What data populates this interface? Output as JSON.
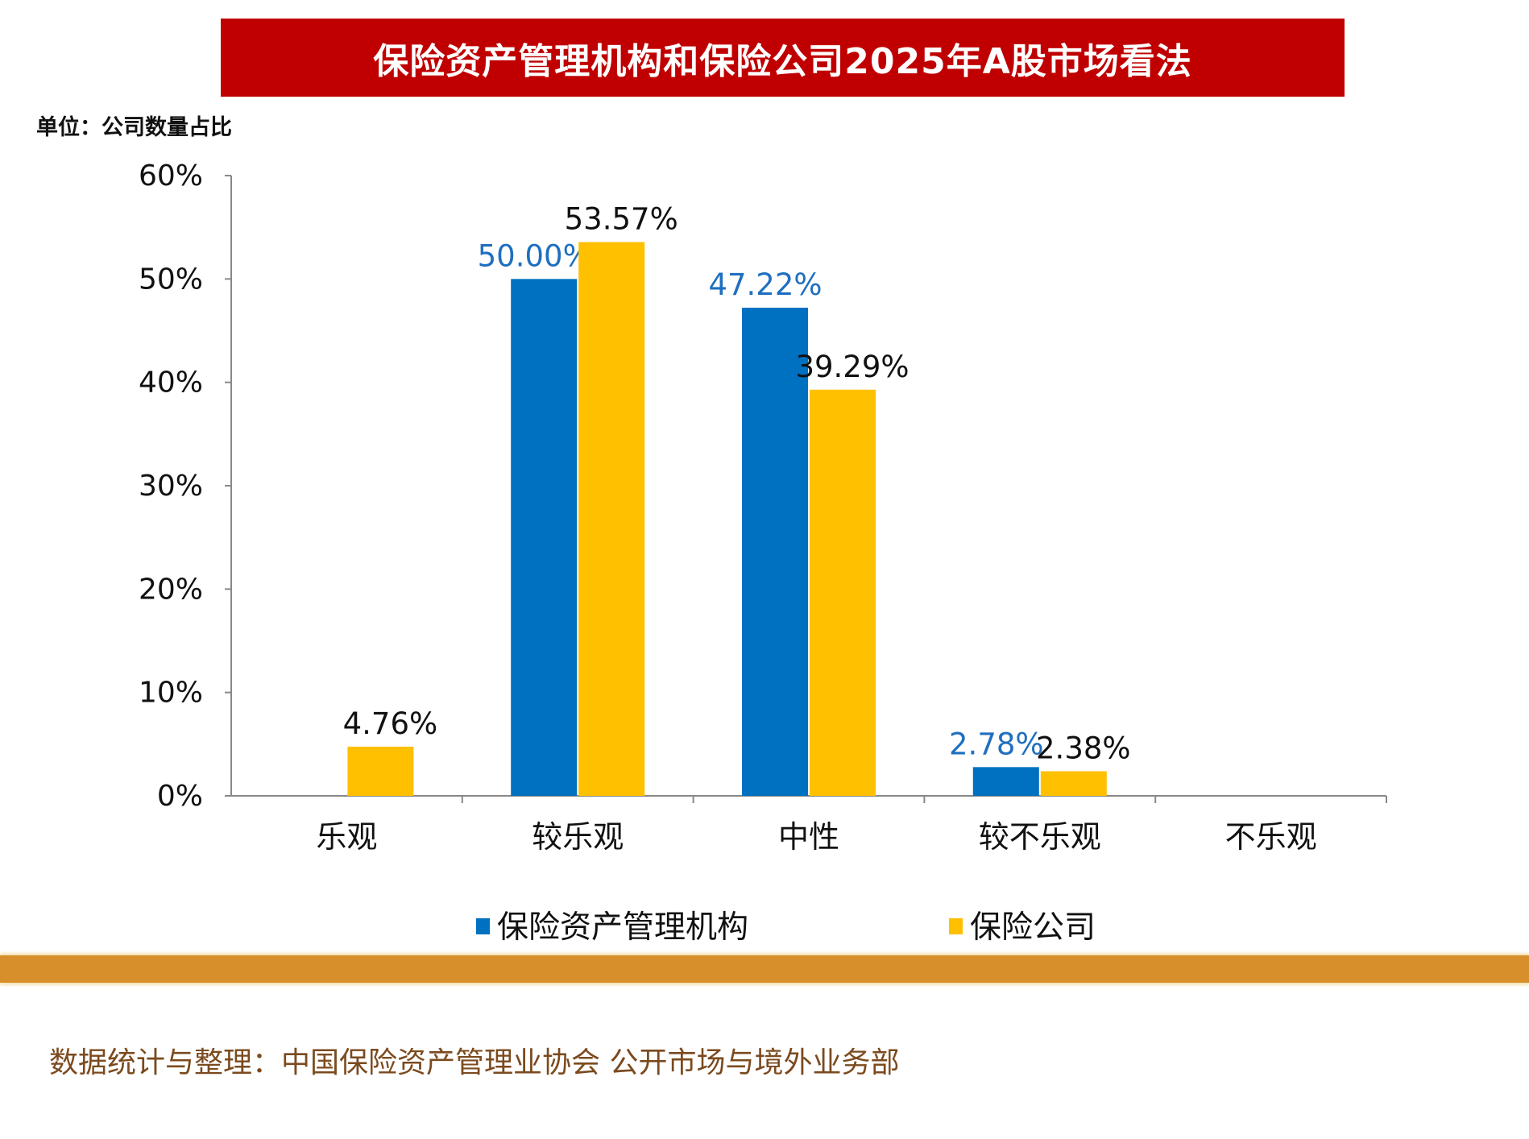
{
  "title": "保险资产管理机构和保险公司2025年A股市场看法",
  "unit_label": "单位：公司数量占比",
  "source": "数据统计与整理：中国保险资产管理业协会 公开市场与境外业务部",
  "colors": {
    "title_bg": "#C00000",
    "series1": "#0070C0",
    "series2": "#FFC000",
    "band": "#D68F2A",
    "source_text": "#7B4A1E",
    "label1": "#1F6FBF",
    "label2": "#111111"
  },
  "chart_data": {
    "type": "bar",
    "title": "保险资产管理机构和保险公司2025年A股市场看法",
    "ylabel": "单位：公司数量占比",
    "categories": [
      "乐观",
      "较乐观",
      "中性",
      "较不乐观",
      "不乐观"
    ],
    "series": [
      {
        "name": "保险资产管理机构",
        "values": [
          0,
          50.0,
          47.22,
          2.78,
          0
        ],
        "labels": [
          "",
          "50.00%",
          "47.22%",
          "2.78%",
          ""
        ]
      },
      {
        "name": "保险公司",
        "values": [
          4.76,
          53.57,
          39.29,
          2.38,
          0
        ],
        "labels": [
          "4.76%",
          "53.57%",
          "39.29%",
          "2.38%",
          ""
        ]
      }
    ],
    "ylim": [
      0,
      60
    ],
    "yticks": [
      0,
      10,
      20,
      30,
      40,
      50,
      60
    ],
    "ytick_labels": [
      "0%",
      "10%",
      "20%",
      "30%",
      "40%",
      "50%",
      "60%"
    ],
    "legend": "bottom",
    "grid": false
  }
}
